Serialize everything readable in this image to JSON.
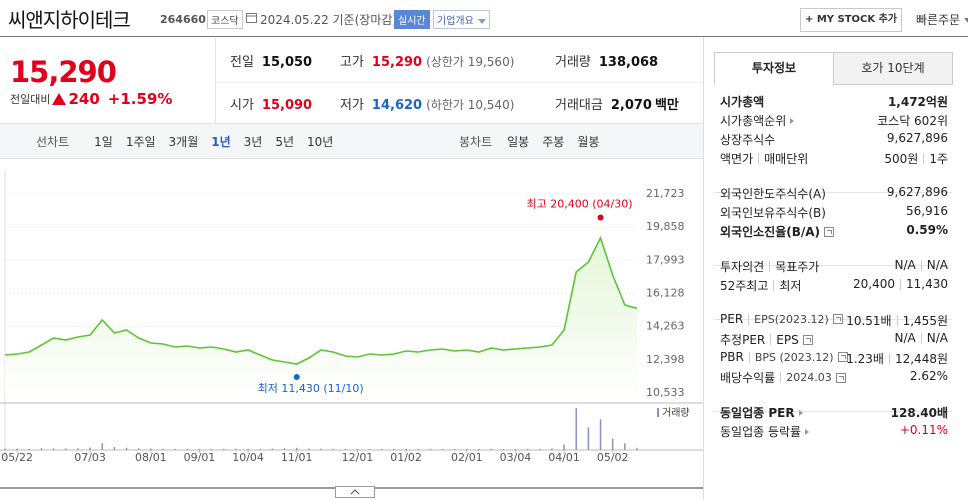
{
  "header": {
    "name": "씨앤지하이테크",
    "code": "264660",
    "market": "코스닥",
    "date": "2024.05.22 기준(장마감)",
    "realtime": "실시간",
    "overview": "기업개요",
    "mystock": "+ MY STOCK 추가",
    "quick_order": "빠른주문"
  },
  "price": {
    "current": "15,290",
    "change_label": "전일대비",
    "change": "240",
    "rate": "+1.59%",
    "color": "#e0001a"
  },
  "summary": [
    {
      "label": "전일",
      "value": "15,050"
    },
    {
      "label": "고가",
      "value": "15,290",
      "note": "(상한가 19,560)",
      "color": "#e0001a"
    },
    {
      "label": "거래량",
      "value": "138,068"
    },
    {
      "label": "시가",
      "value": "15,090",
      "color": "#e0001a"
    },
    {
      "label": "저가",
      "value": "14,620",
      "note": "(하한가 10,540)",
      "color": "#1a63d0"
    },
    {
      "label": "거래대금",
      "value": "2,070",
      "unit": "백만"
    }
  ],
  "chart_tabs": {
    "line_label": "선차트",
    "periods": [
      "1일",
      "1주일",
      "3개월",
      "1년",
      "3년",
      "5년",
      "10년"
    ],
    "selected": 3,
    "candle_label": "봉차트",
    "candles": [
      "일봉",
      "주봉",
      "월봉"
    ]
  },
  "chart_data": {
    "type": "line",
    "categories": [
      null,
      "05/22",
      null,
      null,
      null,
      null,
      null,
      "07/03",
      null,
      null,
      null,
      null,
      "08/01",
      null,
      null,
      null,
      "09/01",
      null,
      null,
      null,
      "10/04",
      null,
      null,
      null,
      "11/01",
      null,
      null,
      null,
      null,
      "12/01",
      null,
      null,
      null,
      "01/02",
      null,
      null,
      null,
      null,
      "02/01",
      null,
      null,
      null,
      "03/04",
      null,
      null,
      null,
      "04/01",
      null,
      null,
      null,
      "05/02",
      null,
      null
    ],
    "values": [
      12670,
      12726,
      12838,
      13232,
      13626,
      13513,
      13682,
      13794,
      14638,
      13907,
      14075,
      13626,
      13345,
      13288,
      13120,
      13176,
      13064,
      13120,
      13007,
      12838,
      12951,
      12670,
      12389,
      12276,
      12164,
      12501,
      12951,
      12838,
      12614,
      12557,
      12726,
      12670,
      12726,
      12895,
      12838,
      12951,
      13007,
      12895,
      12951,
      12838,
      13064,
      12951,
      13007,
      13064,
      13120,
      13232,
      14075,
      17337,
      17899,
      19249,
      17168,
      15482,
      15290
    ],
    "color": "#5cc534",
    "fill": "#e4f6d8",
    "ylim": [
      10533,
      21723
    ],
    "yticks": [
      {
        "value": 10533,
        "label": "10,533"
      },
      {
        "value": 12398,
        "label": "12,398"
      },
      {
        "value": 14263,
        "label": "14,263"
      },
      {
        "value": 16128,
        "label": "16,128"
      },
      {
        "value": 17993,
        "label": "17,993"
      },
      {
        "value": 19858,
        "label": "19,858"
      },
      {
        "value": 21723,
        "label": "21,723"
      }
    ],
    "grid": true,
    "annotations": [
      {
        "label": "최고 20,400 (04/30)",
        "value": 20400,
        "color": "#e0001a"
      },
      {
        "label": "최저 11,430 (11/10)",
        "value": 11430,
        "color": "#1a63d0"
      }
    ],
    "volume": {
      "name": "거래량",
      "color": "#8e90cc",
      "values": [
        80000,
        90000,
        70000,
        120000,
        100000,
        90000,
        110000,
        150000,
        420000,
        180000,
        140000,
        100000,
        90000,
        80000,
        70000,
        80000,
        70000,
        60000,
        70000,
        80000,
        70000,
        60000,
        90000,
        110000,
        130000,
        90000,
        80000,
        70000,
        60000,
        70000,
        60000,
        60000,
        70000,
        80000,
        60000,
        70000,
        60000,
        60000,
        70000,
        60000,
        80000,
        60000,
        70000,
        70000,
        60000,
        90000,
        350000,
        2600000,
        1400000,
        1900000,
        700000,
        420000,
        138068
      ]
    }
  },
  "side_panel": {
    "tabs": [
      "투자정보",
      "호가 10단계"
    ],
    "selected": 0,
    "groups": [
      [
        {
          "labels": [
            "시가총액"
          ],
          "values": [
            "1,472억원"
          ],
          "bold": true
        },
        {
          "labels": [
            "시가총액순위"
          ],
          "values": [
            "코스닥 602위"
          ],
          "link": true
        },
        {
          "labels": [
            "상장주식수"
          ],
          "values": [
            "9,627,896"
          ]
        },
        {
          "labels": [
            "액면가",
            "매매단위"
          ],
          "values": [
            "500원",
            "1주"
          ]
        }
      ],
      [
        {
          "labels": [
            "외국인한도주식수(A)"
          ],
          "values": [
            "9,627,896"
          ]
        },
        {
          "labels": [
            "외국인보유주식수(B)"
          ],
          "values": [
            "56,916"
          ]
        },
        {
          "labels": [
            "외국인소진율(B/A)"
          ],
          "values": [
            "0.59%"
          ],
          "help": true,
          "bold": true
        }
      ],
      [
        {
          "labels": [
            "투자의견",
            "목표주가"
          ],
          "values": [
            "N/A",
            "N/A"
          ]
        },
        {
          "labels": [
            "52주최고",
            "최저"
          ],
          "values": [
            "20,400",
            "11,430"
          ]
        }
      ],
      [
        {
          "labels": [
            "PER",
            "EPS(2023.12)"
          ],
          "values": [
            "10.51배",
            "1,455원"
          ],
          "help": true
        },
        {
          "labels": [
            "추정PER",
            "EPS"
          ],
          "values": [
            "N/A",
            "N/A"
          ],
          "help": true
        },
        {
          "labels": [
            "PBR",
            "BPS (2023.12)"
          ],
          "values": [
            "1.23배",
            "12,448원"
          ],
          "help": true
        },
        {
          "labels": [
            "배당수익률",
            "2024.03"
          ],
          "values": [
            "2.62%"
          ],
          "help": true
        }
      ],
      [
        {
          "labels": [
            "동일업종 PER"
          ],
          "values": [
            "128.40배"
          ],
          "link": true,
          "bold": true
        },
        {
          "labels": [
            "동일업종 등락률"
          ],
          "values": [
            "+0.11%"
          ],
          "link": true,
          "color": "#e0001a"
        }
      ]
    ]
  }
}
